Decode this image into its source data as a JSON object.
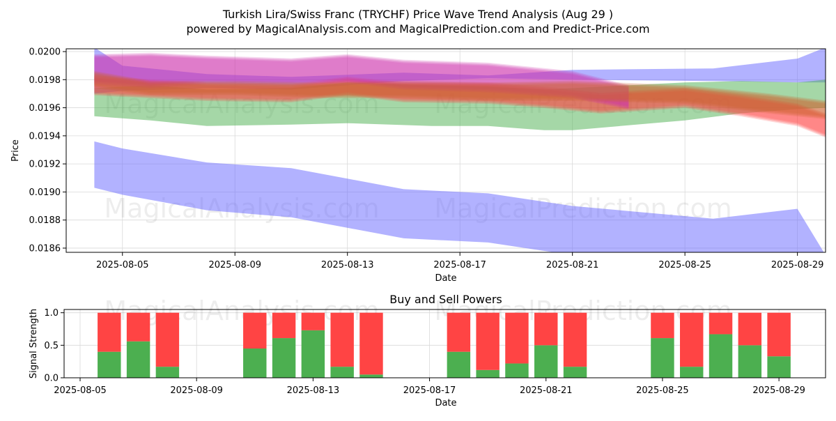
{
  "chart_data": [
    {
      "type": "area",
      "title": "Turkish Lira/Swiss Franc (TRYCHF) Price Wave Trend Analysis (Aug 29 )",
      "subtitle": "powered by MagicalAnalysis.com and MagicalPrediction.com and Predict-Price.com",
      "xlabel": "Date",
      "ylabel": "Price",
      "x_ticks": [
        "2025-08-05",
        "2025-08-09",
        "2025-08-13",
        "2025-08-17",
        "2025-08-21",
        "2025-08-25",
        "2025-08-29"
      ],
      "y_ticks": [
        "0.0186",
        "0.0188",
        "0.0190",
        "0.0192",
        "0.0194",
        "0.0196",
        "0.0198",
        "0.0200"
      ],
      "xlim": [
        "2025-08-03",
        "2025-08-30"
      ],
      "ylim": [
        0.01857,
        0.02002
      ],
      "grid": true,
      "watermarks": [
        "MagicalAnalysis.com",
        "MagicalPrediction.com"
      ],
      "bands": [
        {
          "color": "#6666ff",
          "x": [
            "2025-08-04",
            "2025-08-05",
            "2025-08-08",
            "2025-08-11",
            "2025-08-15",
            "2025-08-18",
            "2025-08-21",
            "2025-08-26",
            "2025-08-29",
            "2025-08-30"
          ],
          "upper": [
            0.02003,
            0.0199,
            0.01984,
            0.01982,
            0.01985,
            0.01983,
            0.01987,
            0.01988,
            0.01995,
            0.02003
          ],
          "lower": [
            0.0197,
            0.01972,
            0.01974,
            0.01973,
            0.01979,
            0.01981,
            0.0198,
            0.01979,
            0.01978,
            0.01978
          ]
        },
        {
          "color": "#6666ff",
          "x": [
            "2025-08-04",
            "2025-08-05",
            "2025-08-08",
            "2025-08-11",
            "2025-08-15",
            "2025-08-18",
            "2025-08-21",
            "2025-08-26",
            "2025-08-29",
            "2025-08-30"
          ],
          "upper": [
            0.01936,
            0.01931,
            0.01921,
            0.01917,
            0.01902,
            0.01899,
            0.0189,
            0.01881,
            0.01888,
            0.01855
          ],
          "lower": [
            0.01903,
            0.01898,
            0.01887,
            0.01882,
            0.01867,
            0.01864,
            0.01855,
            0.01846,
            0.01853,
            0.0182
          ]
        },
        {
          "color": "#4caf50",
          "x": [
            "2025-08-04",
            "2025-08-06",
            "2025-08-08",
            "2025-08-11",
            "2025-08-13",
            "2025-08-16",
            "2025-08-18",
            "2025-08-20",
            "2025-08-21",
            "2025-08-25",
            "2025-08-27",
            "2025-08-29",
            "2025-08-30"
          ],
          "upper": [
            0.01974,
            0.01976,
            0.01973,
            0.01974,
            0.01978,
            0.01976,
            0.01975,
            0.01973,
            0.01974,
            0.01978,
            0.01979,
            0.01978,
            0.0198
          ],
          "lower": [
            0.01954,
            0.01951,
            0.01947,
            0.01948,
            0.01949,
            0.01947,
            0.01947,
            0.01944,
            0.01944,
            0.01951,
            0.01956,
            0.01959,
            0.0196
          ]
        },
        {
          "color": "#ff4444",
          "x": [
            "2025-08-04",
            "2025-08-06",
            "2025-08-08",
            "2025-08-11",
            "2025-08-13",
            "2025-08-15",
            "2025-08-18",
            "2025-08-20",
            "2025-08-22",
            "2025-08-25",
            "2025-08-27",
            "2025-08-29",
            "2025-08-30"
          ],
          "upper": [
            0.01982,
            0.01979,
            0.01977,
            0.01976,
            0.01981,
            0.01977,
            0.01977,
            0.01974,
            0.0197,
            0.01973,
            0.01968,
            0.01962,
            0.01955
          ],
          "lower": [
            0.0197,
            0.01968,
            0.01966,
            0.01965,
            0.0197,
            0.01965,
            0.01964,
            0.01961,
            0.01957,
            0.01961,
            0.01955,
            0.01948,
            0.0194
          ]
        },
        {
          "color": "#cc33aa",
          "x": [
            "2025-08-04",
            "2025-08-06",
            "2025-08-08",
            "2025-08-11",
            "2025-08-13",
            "2025-08-15",
            "2025-08-18",
            "2025-08-21",
            "2025-08-23"
          ],
          "upper": [
            0.01997,
            0.01998,
            0.01996,
            0.01994,
            0.01997,
            0.01993,
            0.01991,
            0.01985,
            0.01975
          ],
          "lower": [
            0.01978,
            0.01975,
            0.01978,
            0.01977,
            0.01979,
            0.01974,
            0.01972,
            0.01968,
            0.0196
          ]
        },
        {
          "color": "#cc6633",
          "x": [
            "2025-08-04",
            "2025-08-06",
            "2025-08-09",
            "2025-08-12",
            "2025-08-15",
            "2025-08-18",
            "2025-08-21",
            "2025-08-25",
            "2025-08-28",
            "2025-08-30"
          ],
          "upper": [
            0.01985,
            0.01978,
            0.01978,
            0.01977,
            0.01978,
            0.01977,
            0.01978,
            0.01975,
            0.01969,
            0.01964
          ],
          "lower": [
            0.01975,
            0.0197,
            0.0197,
            0.01968,
            0.01968,
            0.01966,
            0.01966,
            0.01964,
            0.01957,
            0.01953
          ]
        }
      ]
    },
    {
      "type": "bar",
      "title": "Buy and Sell Powers",
      "xlabel": "Date",
      "ylabel": "Signal Strength",
      "x_ticks": [
        "2025-08-05",
        "2025-08-09",
        "2025-08-13",
        "2025-08-17",
        "2025-08-21",
        "2025-08-25",
        "2025-08-29"
      ],
      "y_ticks": [
        "0.0",
        "0.5",
        "1.0"
      ],
      "xlim": [
        "2025-08-05",
        "2025-08-30"
      ],
      "ylim": [
        0,
        1.05
      ],
      "categories": [
        "2025-08-06",
        "2025-08-07",
        "2025-08-08",
        "2025-08-11",
        "2025-08-12",
        "2025-08-13",
        "2025-08-14",
        "2025-08-15",
        "2025-08-18",
        "2025-08-19",
        "2025-08-20",
        "2025-08-21",
        "2025-08-22",
        "2025-08-25",
        "2025-08-26",
        "2025-08-27",
        "2025-08-28",
        "2025-08-29"
      ],
      "series": [
        {
          "color": "#4caf50",
          "values": [
            0.4,
            0.56,
            0.17,
            0.45,
            0.61,
            0.73,
            0.17,
            0.05,
            0.4,
            0.12,
            0.22,
            0.5,
            0.17,
            0.61,
            0.17,
            0.67,
            0.5,
            0.33
          ]
        },
        {
          "color": "#ff4444",
          "values": [
            0.6,
            0.44,
            0.83,
            0.55,
            0.39,
            0.27,
            0.83,
            0.95,
            0.6,
            0.88,
            0.78,
            0.5,
            0.83,
            0.39,
            0.83,
            0.33,
            0.5,
            0.67
          ]
        }
      ]
    }
  ]
}
